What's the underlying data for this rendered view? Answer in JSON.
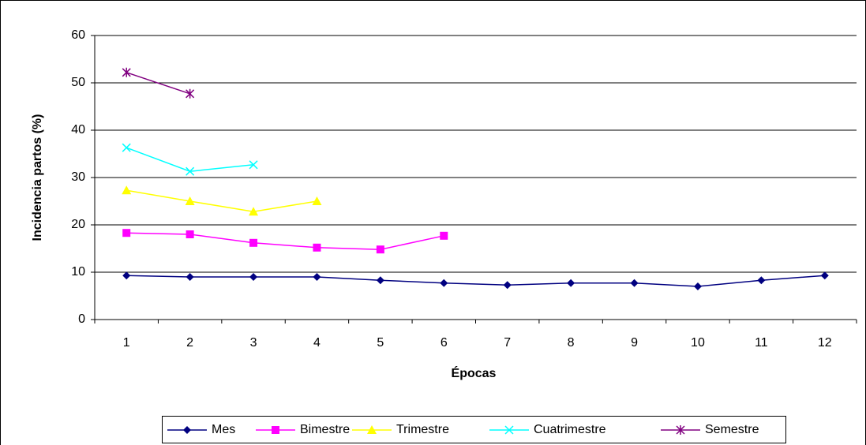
{
  "chart_data": {
    "type": "line",
    "x_label": "Épocas",
    "y_label": "Incidencia partos (%)",
    "categories": [
      "1",
      "2",
      "3",
      "4",
      "5",
      "6",
      "7",
      "8",
      "9",
      "10",
      "11",
      "12"
    ],
    "ylim": [
      0,
      60
    ],
    "yticks": [
      0,
      10,
      20,
      30,
      40,
      50,
      60
    ],
    "grid": true,
    "legend": "bottom",
    "series": [
      {
        "name": "Mes",
        "color": "#000080",
        "marker": "diamond",
        "values": [
          9.3,
          9.0,
          9.0,
          9.0,
          8.3,
          7.7,
          7.3,
          7.7,
          7.7,
          7.0,
          8.3,
          9.3
        ]
      },
      {
        "name": "Bimestre",
        "color": "#ff00ff",
        "marker": "square",
        "values": [
          18.3,
          18.0,
          16.2,
          15.2,
          14.8,
          17.7,
          null,
          null,
          null,
          null,
          null,
          null
        ]
      },
      {
        "name": "Trimestre",
        "color": "#ffff00",
        "marker": "triangle",
        "values": [
          27.3,
          25.0,
          22.8,
          25.0,
          null,
          null,
          null,
          null,
          null,
          null,
          null,
          null
        ]
      },
      {
        "name": "Cuatrimestre",
        "color": "#00ffff",
        "marker": "x",
        "values": [
          36.3,
          31.3,
          32.7,
          null,
          null,
          null,
          null,
          null,
          null,
          null,
          null,
          null
        ]
      },
      {
        "name": "Semestre",
        "color": "#800080",
        "marker": "star",
        "values": [
          52.2,
          47.7,
          null,
          null,
          null,
          null,
          null,
          null,
          null,
          null,
          null,
          null
        ]
      }
    ]
  }
}
